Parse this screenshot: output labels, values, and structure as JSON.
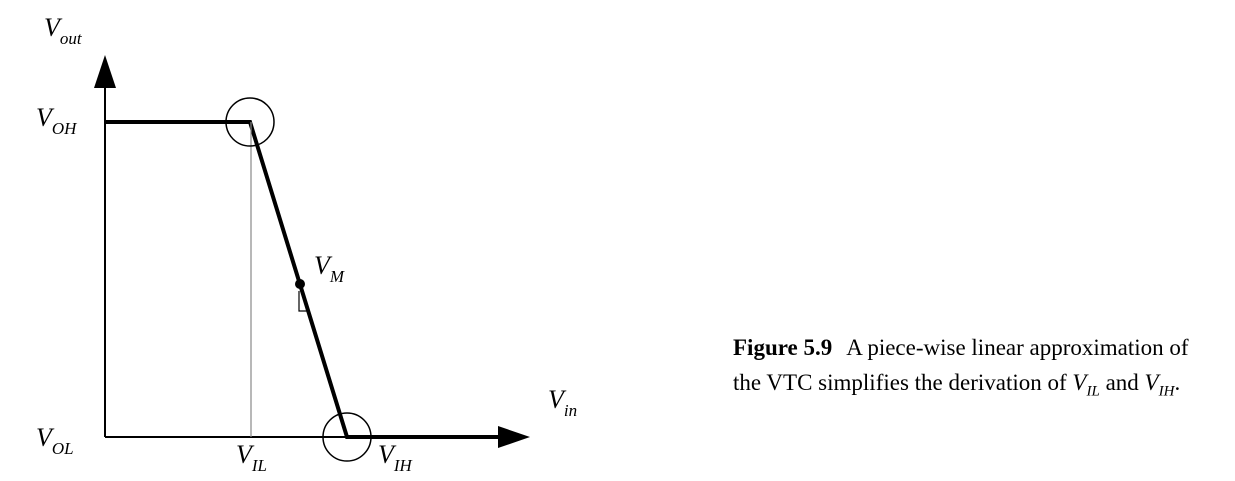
{
  "labels": {
    "vout": {
      "main": "V",
      "sub": "out"
    },
    "voh": {
      "main": "V",
      "sub": "OH"
    },
    "vm": {
      "main": "V",
      "sub": "M"
    },
    "vin": {
      "main": "V",
      "sub": "in"
    },
    "vol": {
      "main": "V",
      "sub": "OL"
    },
    "vil": {
      "main": "V",
      "sub": "IL"
    },
    "vih": {
      "main": "V",
      "sub": "IH"
    }
  },
  "caption": {
    "number": "Figure 5.9",
    "text": "A piece-wise linear approximation of the VTC simplifies the derivation of",
    "vil": {
      "main": "V",
      "sub": "IL"
    },
    "and": "and",
    "vih": {
      "main": "V",
      "sub": "IH"
    },
    "end": "."
  }
}
